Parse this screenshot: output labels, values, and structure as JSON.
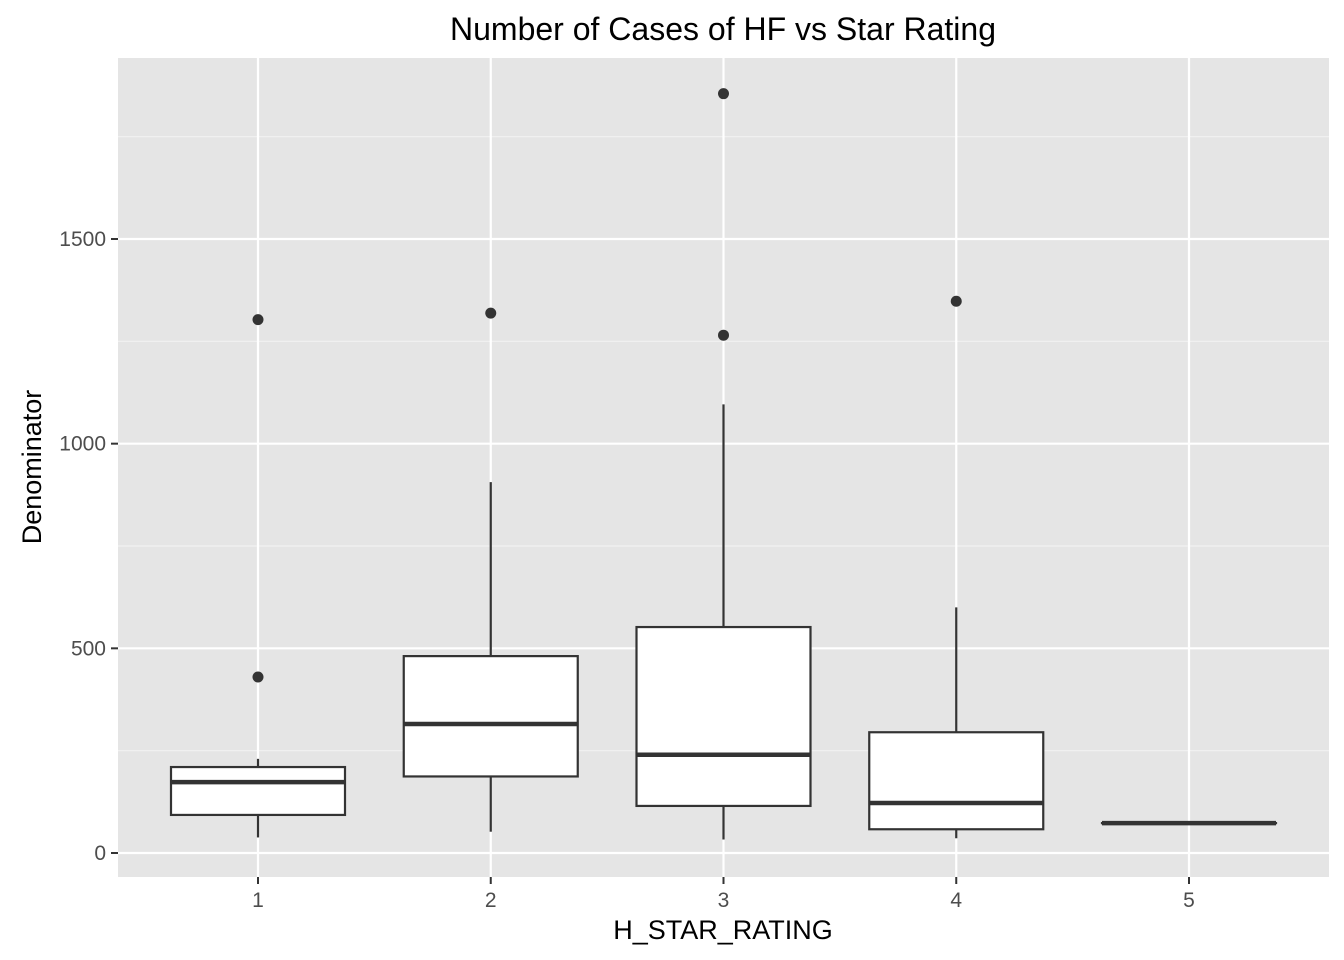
{
  "chart_data": {
    "type": "boxplot",
    "title": "Number of Cases of HF vs Star Rating",
    "xlabel": "H_STAR_RATING",
    "ylabel": "Denominator",
    "categories": [
      "1",
      "2",
      "3",
      "4",
      "5"
    ],
    "boxes": [
      {
        "category": "1",
        "lower_whisker": 38,
        "q1": 93,
        "median": 173,
        "q3": 210,
        "upper_whisker": 230,
        "outliers": [
          430,
          1303
        ]
      },
      {
        "category": "2",
        "lower_whisker": 52,
        "q1": 187,
        "median": 315,
        "q3": 481,
        "upper_whisker": 906,
        "outliers": [
          1319
        ]
      },
      {
        "category": "3",
        "lower_whisker": 33,
        "q1": 115,
        "median": 240,
        "q3": 552,
        "upper_whisker": 1096,
        "outliers": [
          1265,
          1855
        ]
      },
      {
        "category": "4",
        "lower_whisker": 36,
        "q1": 58,
        "median": 122,
        "q3": 295,
        "upper_whisker": 600,
        "outliers": [
          1348
        ]
      },
      {
        "category": "5",
        "lower_whisker": 73,
        "q1": 73,
        "median": 73,
        "q3": 73,
        "upper_whisker": 73,
        "outliers": []
      }
    ],
    "y_ticks": [
      0,
      500,
      1000,
      1500
    ],
    "ylim": [
      -60,
      2000
    ],
    "grid": true
  }
}
